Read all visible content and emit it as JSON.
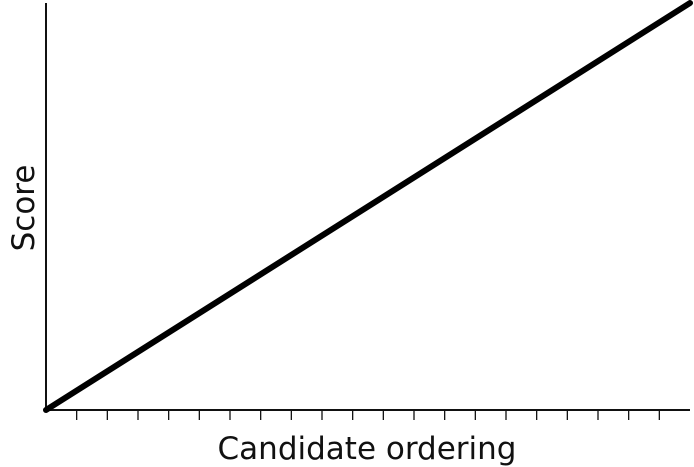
{
  "chart_data": {
    "type": "line",
    "title": "",
    "xlabel": "Candidate ordering",
    "ylabel": "Score",
    "x": [
      0,
      21
    ],
    "series": [
      {
        "values": [
          0,
          1
        ]
      }
    ],
    "xlim": [
      0,
      21
    ],
    "ylim": [
      0,
      1
    ],
    "x_tick_count": 21,
    "x_tick_labels": [],
    "y_tick_labels": [],
    "grid": false,
    "legend": "none",
    "colors": {
      "axis": "#111111",
      "line": "#000000"
    }
  }
}
